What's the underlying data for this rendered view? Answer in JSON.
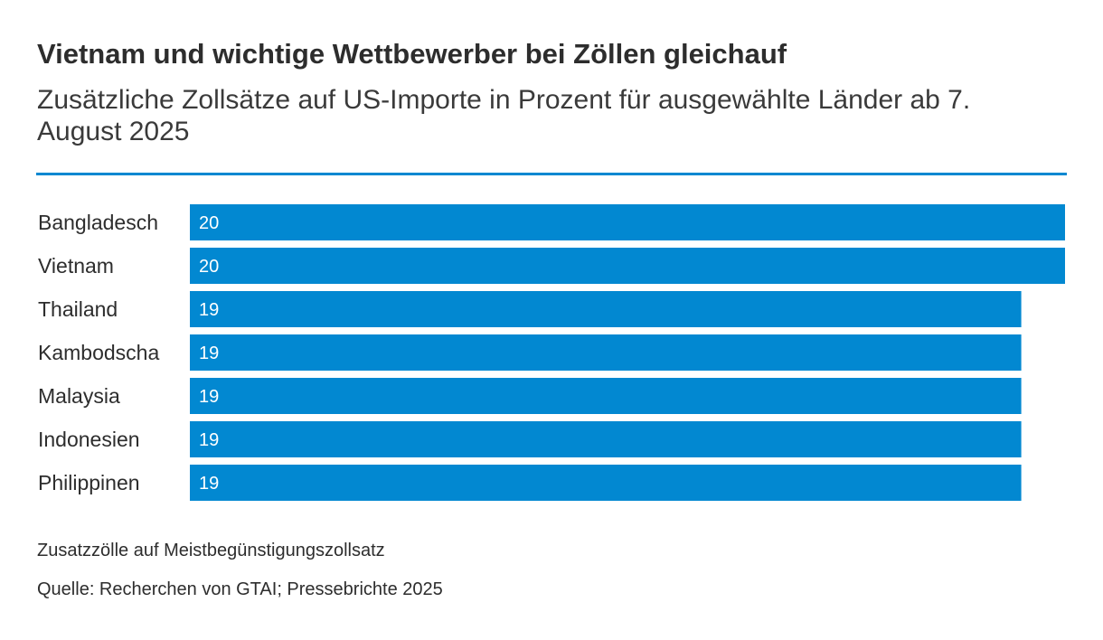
{
  "colors": {
    "accent": "#0288d1",
    "text": "#2d2d2d"
  },
  "footer": {
    "note": "Zusatzzölle auf Meistbegünstigungszollsatz",
    "source": "Quelle: Recherchen von GTAI; Pressebrichte 2025"
  },
  "chart_data": {
    "type": "bar",
    "orientation": "horizontal",
    "title": "Vietnam und wichtige Wettbewerber bei Zöllen gleichauf",
    "subtitle": "Zusätzliche Zollsätze auf US-Importe in Prozent für ausgewählte Länder ab 7. August 2025",
    "categories": [
      "Bangladesch",
      "Vietnam",
      "Thailand",
      "Kambodscha",
      "Malaysia",
      "Indonesien",
      "Philippinen"
    ],
    "values": [
      20,
      20,
      19,
      19,
      19,
      19,
      19
    ],
    "xlabel": "",
    "ylabel": "",
    "xlim": [
      0,
      20
    ],
    "grid": false,
    "data_labels": [
      "20",
      "20",
      "19",
      "19",
      "19",
      "19",
      "19"
    ]
  }
}
